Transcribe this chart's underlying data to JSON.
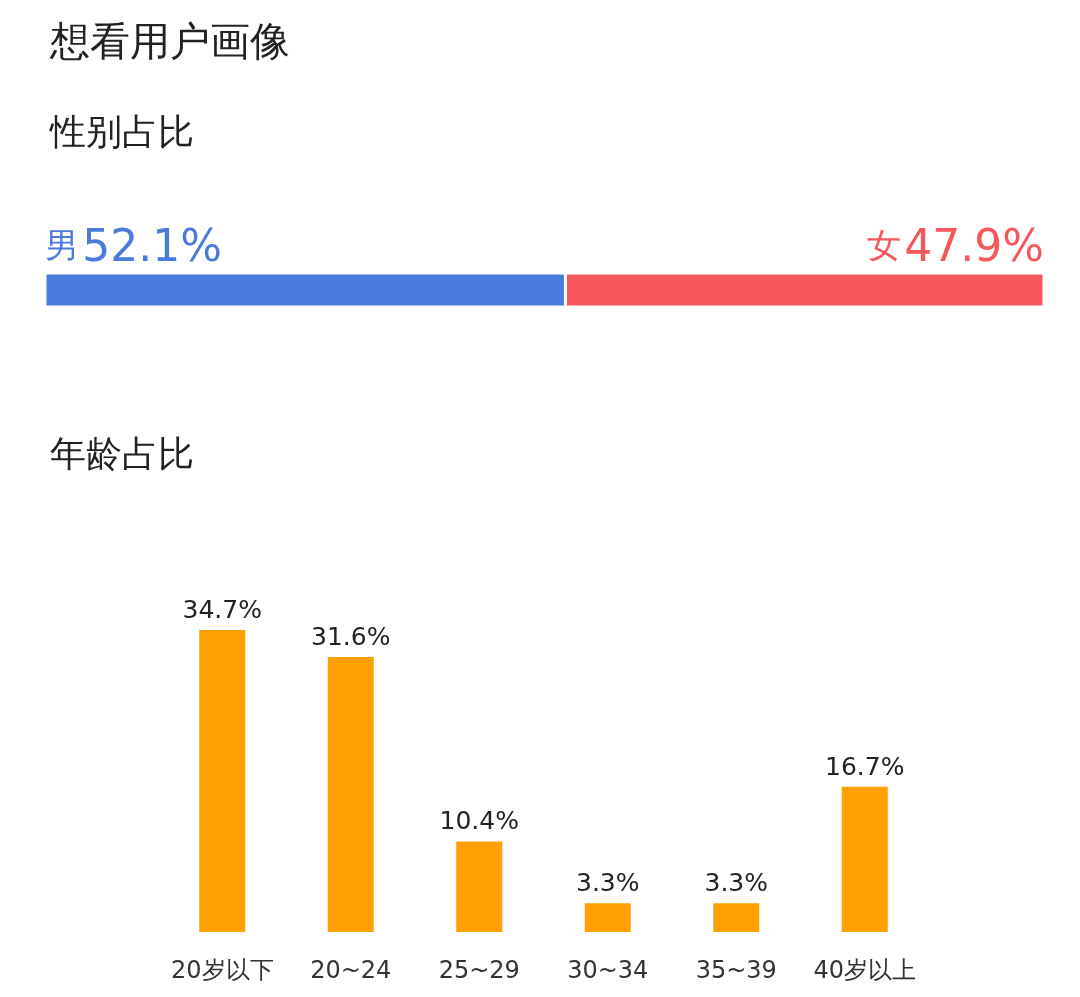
{
  "chart_data": [
    {
      "type": "bar",
      "title": "想看用户画像",
      "subtitle": "性别占比",
      "orientation": "horizontal",
      "stacked": true,
      "categories": [
        null
      ],
      "tick_labels": false,
      "legend": false,
      "series": [
        {
          "name": "男",
          "color": "#4a7bdc",
          "values": [
            52.1
          ],
          "value_labels": [
            "52.1%"
          ]
        },
        {
          "name": "女",
          "color": "#f5575c",
          "values": [
            47.9
          ],
          "value_labels": [
            "47.9%"
          ]
        }
      ]
    },
    {
      "type": "bar",
      "title": "年龄占比",
      "categories": [
        "20岁以下",
        "20~24",
        "25~29",
        "30~34",
        "35~39",
        "40岁以上"
      ],
      "values": [
        34.7,
        31.6,
        10.4,
        3.3,
        3.3,
        16.7
      ],
      "value_labels": [
        "34.7%",
        "31.6%",
        "10.4%",
        "3.3%",
        "3.3%",
        "16.7%"
      ],
      "color": "#ffa000",
      "tick_labels": "x",
      "legend": false
    }
  ]
}
